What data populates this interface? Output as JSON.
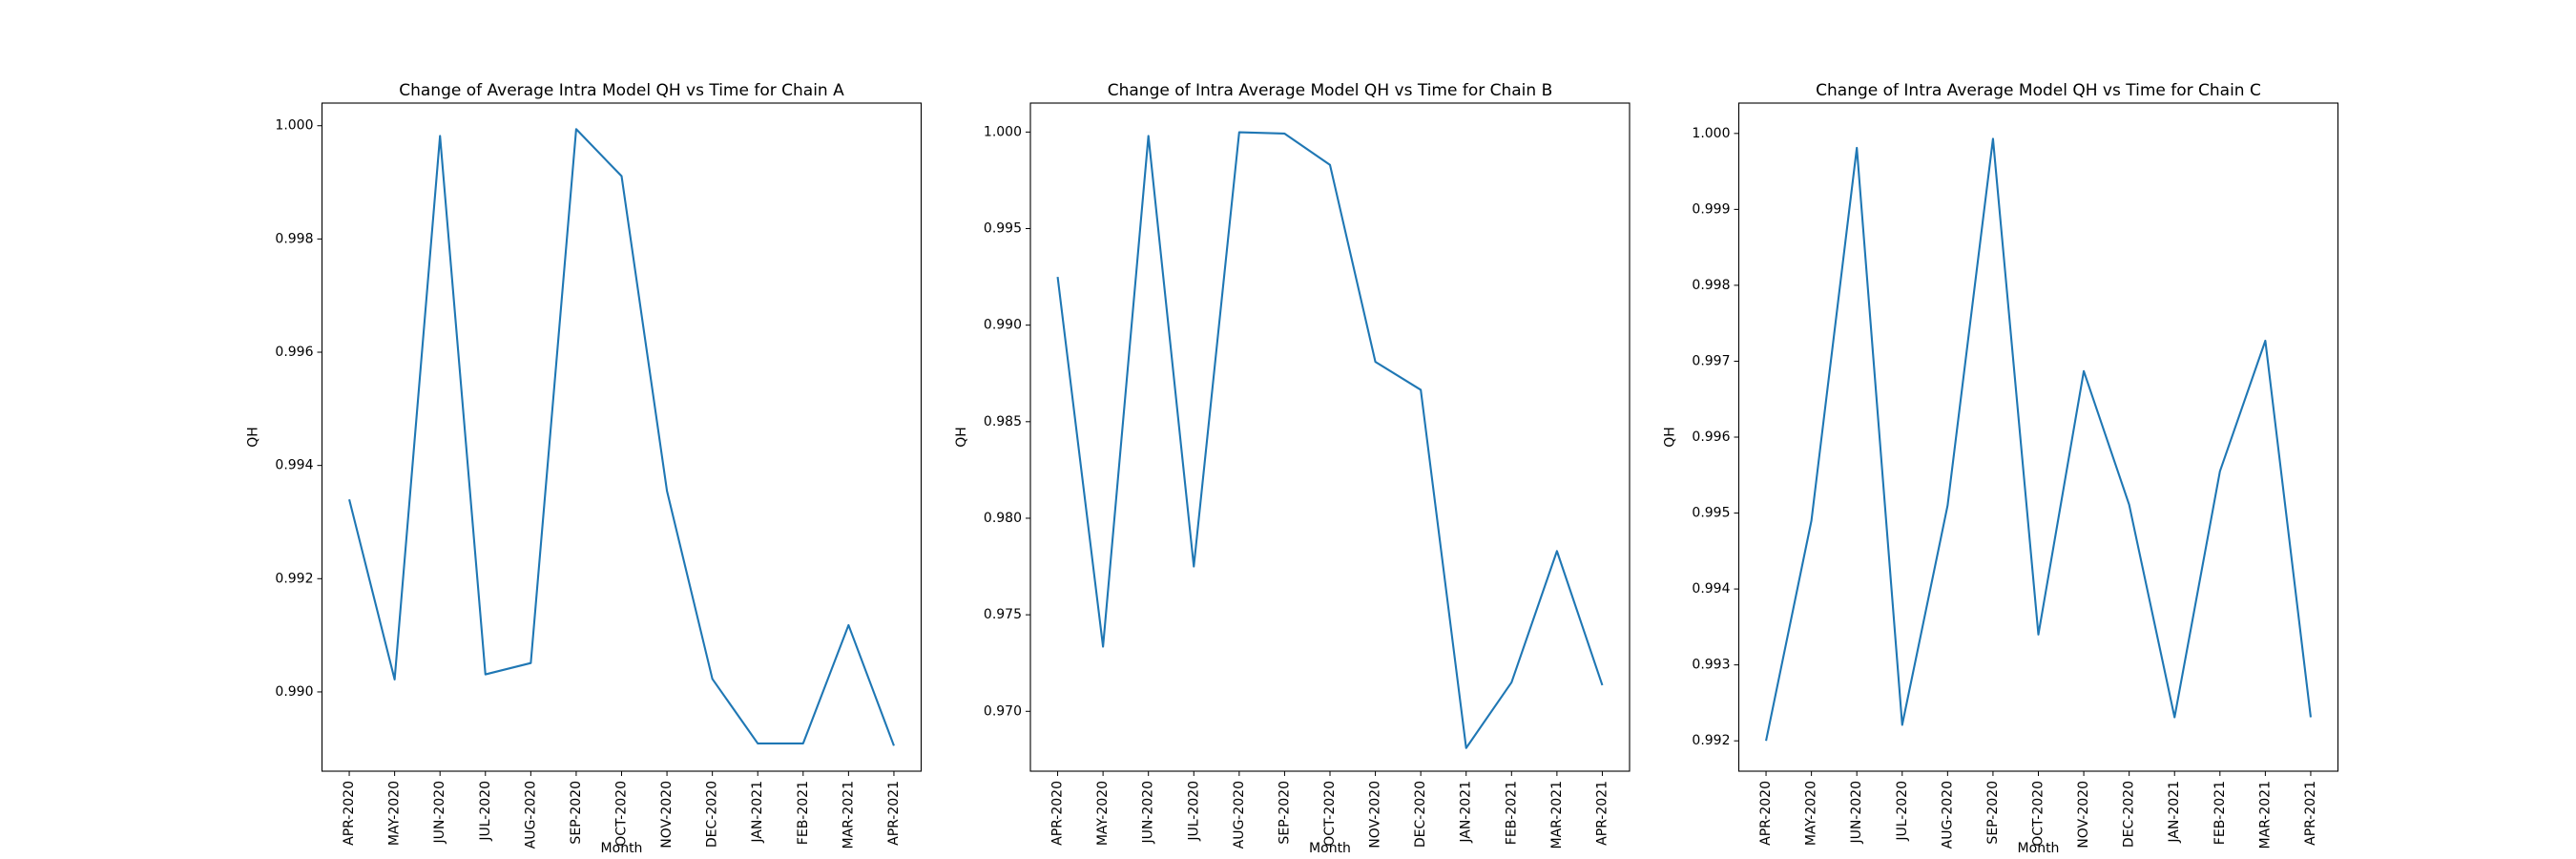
{
  "chart_data": [
    {
      "type": "line",
      "title": "Change of Average Intra Model QH vs Time for Chain A",
      "xlabel": "Month",
      "ylabel": "QH",
      "categories": [
        "APR-2020",
        "MAY-2020",
        "JUN-2020",
        "JUL-2020",
        "AUG-2020",
        "SEP-2020",
        "OCT-2020",
        "NOV-2020",
        "DEC-2020",
        "JAN-2021",
        "FEB-2021",
        "MAR-2021",
        "APR-2021"
      ],
      "series": [
        {
          "values": [
            0.9934,
            0.99022,
            0.99982,
            0.99031,
            0.99051,
            0.99994,
            0.99911,
            0.99355,
            0.99023,
            0.98909,
            0.98909,
            0.99118,
            0.98905
          ]
        }
      ],
      "ylim": [
        0.9886,
        1.0004
      ],
      "yticks": [
        0.99,
        0.992,
        0.994,
        0.996,
        0.998,
        1.0
      ],
      "ytick_labels": [
        "0.990",
        "0.992",
        "0.994",
        "0.996",
        "0.998",
        "1.000"
      ],
      "color": "#1f77b4",
      "grid": false
    },
    {
      "type": "line",
      "title": "Change of Intra Average Model QH vs Time for Chain B",
      "xlabel": "Month",
      "ylabel": "QH",
      "categories": [
        "APR-2020",
        "MAY-2020",
        "JUN-2020",
        "JUL-2020",
        "AUG-2020",
        "SEP-2020",
        "OCT-2020",
        "NOV-2020",
        "DEC-2020",
        "JAN-2021",
        "FEB-2021",
        "MAR-2021",
        "APR-2021"
      ],
      "series": [
        {
          "values": [
            0.9925,
            0.97335,
            0.9998,
            0.9775,
            0.99999,
            0.99992,
            0.9983,
            0.9881,
            0.98665,
            0.9681,
            0.9715,
            0.9783,
            0.97135
          ]
        }
      ],
      "ylim": [
        0.9669,
        1.0015
      ],
      "yticks": [
        0.97,
        0.975,
        0.98,
        0.985,
        0.99,
        0.995,
        1.0
      ],
      "ytick_labels": [
        "0.970",
        "0.975",
        "0.980",
        "0.985",
        "0.990",
        "0.995",
        "1.000"
      ],
      "color": "#1f77b4",
      "grid": false
    },
    {
      "type": "line",
      "title": "Change of Intra Average Model QH vs Time for Chain C",
      "xlabel": "Month",
      "ylabel": "QH",
      "categories": [
        "APR-2020",
        "MAY-2020",
        "JUN-2020",
        "JUL-2020",
        "AUG-2020",
        "SEP-2020",
        "OCT-2020",
        "NOV-2020",
        "DEC-2020",
        "JAN-2021",
        "FEB-2021",
        "MAR-2021",
        "APR-2021"
      ],
      "series": [
        {
          "values": [
            0.992,
            0.9949,
            0.99981,
            0.99221,
            0.9951,
            0.99993,
            0.9934,
            0.99687,
            0.99511,
            0.99231,
            0.99555,
            0.99727,
            0.99231
          ]
        }
      ],
      "ylim": [
        0.9916,
        1.0004
      ],
      "yticks": [
        0.992,
        0.993,
        0.994,
        0.995,
        0.996,
        0.997,
        0.998,
        0.999,
        1.0
      ],
      "ytick_labels": [
        "0.992",
        "0.993",
        "0.994",
        "0.995",
        "0.996",
        "0.997",
        "0.998",
        "0.999",
        "1.000"
      ],
      "color": "#1f77b4",
      "grid": false
    }
  ]
}
